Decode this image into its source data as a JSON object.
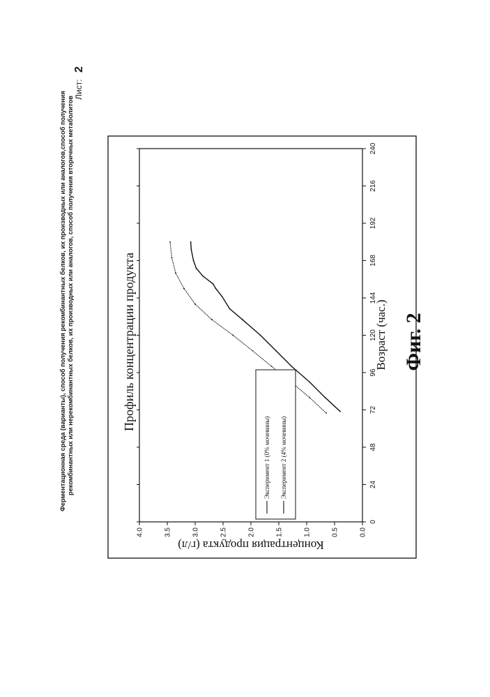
{
  "header": {
    "line1": "Ферментационная среда (варианты), способ получения рекомбинантных белков, их производных или аналогов,способ получения",
    "line2": "рекомбинантных или нерекомбинантных белков, их производных или аналогов, способ получения вторичных метаболитов",
    "sheet_label": "Лист:",
    "sheet_number": "2"
  },
  "figure_label": "Фиг. 2",
  "chart_data": {
    "type": "line",
    "title": "Профиль концентрации продукта",
    "xlabel": "Возраст (час.)",
    "ylabel": "Концентрация продукта (г/л)",
    "xlim": [
      0,
      240
    ],
    "ylim": [
      0.0,
      4.0
    ],
    "x_ticks": [
      "0",
      "24",
      "48",
      "72",
      "96",
      "120",
      "144",
      "168",
      "192",
      "216",
      "240"
    ],
    "y_ticks": [
      "0.0",
      "0.5",
      "1.0",
      "1.5",
      "2.0",
      "2.5",
      "3.0",
      "3.5",
      "4.0"
    ],
    "legend_position": "bottom-left",
    "series": [
      {
        "name": "Эксперимент 1 (0% мочевины)",
        "x": [
          70,
          80,
          90,
          100,
          110,
          120,
          130,
          140,
          150,
          160,
          170,
          180
        ],
        "y": [
          0.65,
          0.95,
          1.28,
          1.63,
          1.97,
          2.32,
          2.7,
          3.0,
          3.2,
          3.35,
          3.42,
          3.45
        ]
      },
      {
        "name": "Эксперимент 2 (4% мочевины)",
        "x": [
          71,
          80,
          90,
          100,
          110,
          120,
          130,
          137,
          145,
          150,
          153,
          158,
          163,
          168,
          175,
          180
        ],
        "y": [
          0.4,
          0.67,
          0.95,
          1.27,
          1.55,
          1.83,
          2.15,
          2.38,
          2.52,
          2.63,
          2.68,
          2.86,
          2.98,
          3.03,
          3.07,
          3.08
        ]
      }
    ]
  }
}
